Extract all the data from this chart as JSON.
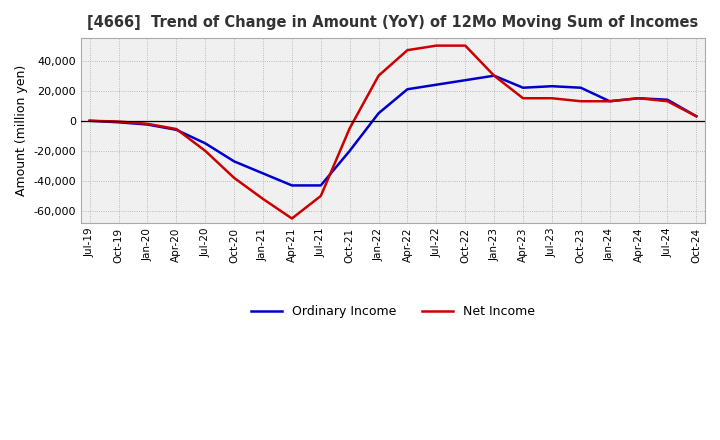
{
  "title": "[4666]  Trend of Change in Amount (YoY) of 12Mo Moving Sum of Incomes",
  "ylabel": "Amount (million yen)",
  "ylim": [
    -68000,
    55000
  ],
  "yticks": [
    -60000,
    -40000,
    -20000,
    0,
    20000,
    40000
  ],
  "background_color": "#ffffff",
  "plot_bg_color": "#f0f0f0",
  "grid_color": "#aaaaaa",
  "ordinary_income_color": "#0000cc",
  "net_income_color": "#cc0000",
  "legend_labels": [
    "Ordinary Income",
    "Net Income"
  ],
  "x_labels": [
    "Jul-19",
    "Oct-19",
    "Jan-20",
    "Apr-20",
    "Jul-20",
    "Oct-20",
    "Jan-21",
    "Apr-21",
    "Jul-21",
    "Oct-21",
    "Jan-22",
    "Apr-22",
    "Jul-22",
    "Oct-22",
    "Jan-23",
    "Apr-23",
    "Jul-23",
    "Oct-23",
    "Jan-24",
    "Apr-24",
    "Jul-24",
    "Oct-24"
  ],
  "ordinary_income": [
    0,
    -1000,
    -2500,
    -6000,
    -15000,
    -27000,
    -35000,
    -43000,
    -43000,
    -20000,
    5000,
    21000,
    24000,
    27000,
    30000,
    22000,
    23000,
    22000,
    13000,
    15000,
    14000,
    3000
  ],
  "net_income": [
    0,
    -500,
    -2000,
    -5500,
    -20000,
    -38000,
    -52000,
    -65000,
    -50000,
    -5000,
    30000,
    47000,
    50000,
    50000,
    30000,
    15000,
    15000,
    13000,
    13000,
    15000,
    13000,
    3000
  ]
}
